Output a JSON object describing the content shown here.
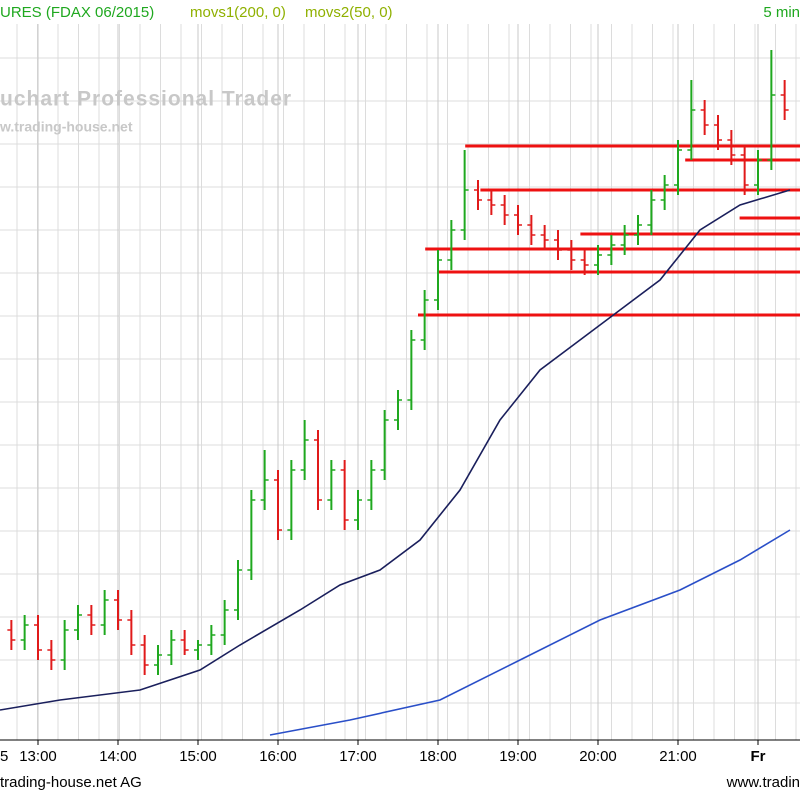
{
  "chart_data": {
    "type": "ohlc",
    "title": "URES (FDAX 06/2015)",
    "indicators": [
      "movs1(200, 0)",
      "movs2(50, 0)"
    ],
    "interval": "5 min",
    "watermark": "uchart Professional Trader",
    "watermark_url": "w.trading-house.net",
    "footer_left": "trading-house.net AG",
    "footer_right": "www.tradin",
    "date_label": "5",
    "xlim": [
      12.525,
      22.525
    ],
    "ylim": [
      0,
      740
    ],
    "xticks": [
      {
        "value": 13,
        "label": "13:00"
      },
      {
        "value": 14,
        "label": "14:00"
      },
      {
        "value": 15,
        "label": "15:00"
      },
      {
        "value": 16,
        "label": "16:00"
      },
      {
        "value": 17,
        "label": "17:00"
      },
      {
        "value": 18,
        "label": "18:00"
      },
      {
        "value": 19,
        "label": "19:00"
      },
      {
        "value": 20,
        "label": "20:00"
      },
      {
        "value": 21,
        "label": "21:00"
      },
      {
        "value": 22,
        "label": "Fr"
      }
    ],
    "grid": true,
    "up_color": "#1fa81f",
    "down_color": "#e01a1a",
    "x": [
      12.667,
      12.833,
      13,
      13.167,
      13.333,
      13.5,
      13.667,
      13.833,
      14,
      14.167,
      14.333,
      14.5,
      14.667,
      14.833,
      15,
      15.167,
      15.333,
      15.5,
      15.667,
      15.833,
      16,
      16.167,
      16.333,
      16.5,
      16.667,
      16.833,
      17,
      17.167,
      17.333,
      17.5,
      17.667,
      17.833,
      18,
      18.167,
      18.333,
      18.5,
      18.667,
      18.833,
      19,
      19.167,
      19.333,
      19.5,
      19.667,
      19.833,
      20,
      20.167,
      20.333,
      20.5,
      20.667,
      20.833,
      21,
      21.167,
      21.333,
      21.5,
      21.667,
      21.833,
      22,
      22.167,
      22.333
    ],
    "open": [
      110,
      100,
      115,
      90,
      80,
      110,
      125,
      115,
      140,
      120,
      95,
      75,
      85,
      100,
      90,
      95,
      105,
      130,
      170,
      240,
      260,
      210,
      270,
      300,
      240,
      270,
      220,
      240,
      270,
      320,
      340,
      400,
      440,
      480,
      510,
      550,
      540,
      535,
      525,
      515,
      505,
      500,
      490,
      480,
      475,
      485,
      495,
      505,
      515,
      540,
      555,
      590,
      630,
      615,
      600,
      585,
      555,
      580,
      645
    ],
    "high": [
      120,
      125,
      125,
      100,
      120,
      135,
      135,
      150,
      150,
      130,
      105,
      95,
      110,
      110,
      100,
      115,
      140,
      180,
      250,
      290,
      270,
      280,
      320,
      310,
      280,
      280,
      250,
      280,
      330,
      350,
      410,
      450,
      490,
      520,
      590,
      560,
      550,
      545,
      535,
      525,
      515,
      510,
      500,
      490,
      495,
      505,
      515,
      525,
      550,
      565,
      600,
      660,
      640,
      625,
      610,
      595,
      590,
      690,
      660
    ],
    "low": [
      90,
      90,
      80,
      70,
      70,
      100,
      105,
      105,
      110,
      85,
      65,
      65,
      75,
      85,
      80,
      85,
      95,
      120,
      160,
      230,
      200,
      200,
      260,
      230,
      230,
      210,
      210,
      230,
      260,
      310,
      330,
      390,
      430,
      470,
      500,
      530,
      525,
      515,
      505,
      495,
      490,
      480,
      470,
      465,
      465,
      475,
      485,
      495,
      505,
      530,
      545,
      580,
      605,
      590,
      575,
      545,
      545,
      570,
      620
    ],
    "close": [
      100,
      115,
      90,
      80,
      110,
      125,
      115,
      140,
      120,
      95,
      75,
      85,
      100,
      90,
      95,
      105,
      130,
      170,
      240,
      260,
      210,
      270,
      300,
      240,
      270,
      220,
      240,
      270,
      320,
      340,
      400,
      440,
      480,
      510,
      550,
      540,
      535,
      525,
      515,
      505,
      500,
      490,
      480,
      475,
      485,
      495,
      505,
      515,
      540,
      555,
      590,
      630,
      615,
      600,
      585,
      555,
      580,
      645,
      630
    ],
    "series": [
      {
        "name": "movs2(50, 0)",
        "color": "#1a1f5c",
        "x": [
          12.525,
          13.275,
          14.275,
          15.025,
          15.525,
          16.275,
          16.775,
          17.275,
          17.775,
          18.275,
          18.775,
          19.275,
          19.775,
          20.275,
          20.775,
          21.275,
          21.775,
          22.4
        ],
        "values": [
          30,
          40,
          50,
          70,
          95,
          130,
          155,
          170,
          200,
          250,
          320,
          370,
          400,
          430,
          460,
          510,
          535,
          550
        ]
      },
      {
        "name": "movs1(200, 0)",
        "color": "#2a4fc8",
        "x": [
          15.9,
          16.9,
          18.025,
          19.025,
          20.025,
          21.025,
          21.775,
          22.4
        ],
        "values": [
          5,
          20,
          40,
          80,
          120,
          150,
          180,
          210
        ]
      }
    ],
    "level_color": "#ee1111",
    "levels": [
      {
        "value": 594,
        "start": 18.34
      },
      {
        "value": 580,
        "start": 21.09
      },
      {
        "value": 550,
        "start": 18.53
      },
      {
        "value": 522,
        "start": 21.77
      },
      {
        "value": 506,
        "start": 19.78
      },
      {
        "value": 491,
        "start": 17.84
      },
      {
        "value": 468,
        "start": 17.99
      },
      {
        "value": 425,
        "start": 17.75
      }
    ]
  }
}
